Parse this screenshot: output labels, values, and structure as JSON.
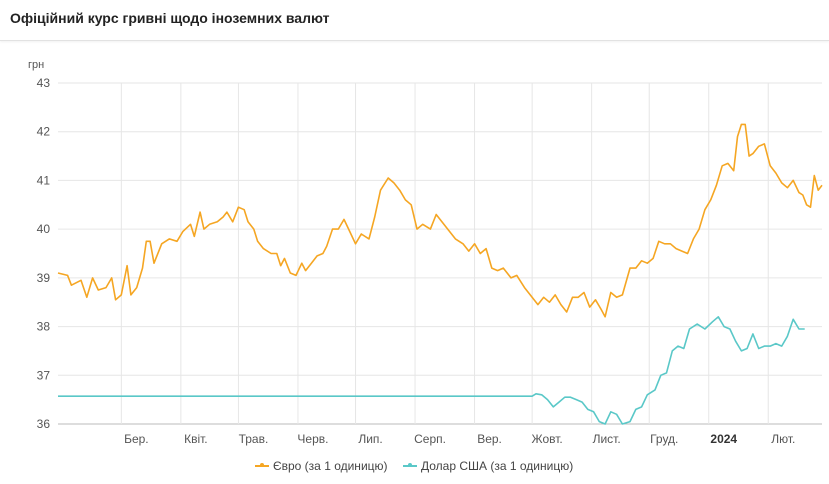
{
  "header": {
    "title": "Офіційний курс гривні щодо іноземних валют"
  },
  "chart_data": {
    "type": "line",
    "ylabel": "грн",
    "ylim": [
      36,
      43
    ],
    "yticks": [
      36,
      37,
      38,
      39,
      40,
      41,
      42,
      43
    ],
    "grid": true,
    "legend_position": "bottom",
    "x_range": [
      "2023-01-27",
      "2024-02-29"
    ],
    "month_ticks": [
      {
        "date": "2023-03-01",
        "label": "Бер.",
        "bold": false
      },
      {
        "date": "2023-04-01",
        "label": "Квіт.",
        "bold": false
      },
      {
        "date": "2023-05-01",
        "label": "Трав.",
        "bold": false
      },
      {
        "date": "2023-06-01",
        "label": "Черв.",
        "bold": false
      },
      {
        "date": "2023-07-01",
        "label": "Лип.",
        "bold": false
      },
      {
        "date": "2023-08-01",
        "label": "Серп.",
        "bold": false
      },
      {
        "date": "2023-09-01",
        "label": "Вер.",
        "bold": false
      },
      {
        "date": "2023-10-01",
        "label": "Жовт.",
        "bold": false
      },
      {
        "date": "2023-11-01",
        "label": "Лист.",
        "bold": false
      },
      {
        "date": "2023-12-01",
        "label": "Груд.",
        "bold": false
      },
      {
        "date": "2024-01-01",
        "label": "2024",
        "bold": true
      },
      {
        "date": "2024-02-01",
        "label": "Лют.",
        "bold": false
      }
    ],
    "series": [
      {
        "name": "Євро (за 1 одиницю)",
        "color": "#f5a623",
        "points": [
          [
            "2023-01-27",
            39.1
          ],
          [
            "2023-02-01",
            39.05
          ],
          [
            "2023-02-03",
            38.85
          ],
          [
            "2023-02-08",
            38.95
          ],
          [
            "2023-02-11",
            38.6
          ],
          [
            "2023-02-14",
            39.0
          ],
          [
            "2023-02-17",
            38.75
          ],
          [
            "2023-02-21",
            38.8
          ],
          [
            "2023-02-24",
            39.0
          ],
          [
            "2023-02-26",
            38.55
          ],
          [
            "2023-03-01",
            38.65
          ],
          [
            "2023-03-04",
            39.25
          ],
          [
            "2023-03-06",
            38.65
          ],
          [
            "2023-03-09",
            38.8
          ],
          [
            "2023-03-12",
            39.2
          ],
          [
            "2023-03-14",
            39.75
          ],
          [
            "2023-03-16",
            39.75
          ],
          [
            "2023-03-18",
            39.3
          ],
          [
            "2023-03-22",
            39.7
          ],
          [
            "2023-03-26",
            39.8
          ],
          [
            "2023-03-30",
            39.75
          ],
          [
            "2023-04-02",
            39.95
          ],
          [
            "2023-04-06",
            40.1
          ],
          [
            "2023-04-08",
            39.85
          ],
          [
            "2023-04-11",
            40.35
          ],
          [
            "2023-04-13",
            40.0
          ],
          [
            "2023-04-16",
            40.1
          ],
          [
            "2023-04-20",
            40.15
          ],
          [
            "2023-04-23",
            40.25
          ],
          [
            "2023-04-25",
            40.35
          ],
          [
            "2023-04-28",
            40.15
          ],
          [
            "2023-05-01",
            40.45
          ],
          [
            "2023-05-04",
            40.4
          ],
          [
            "2023-05-06",
            40.15
          ],
          [
            "2023-05-09",
            40.0
          ],
          [
            "2023-05-11",
            39.75
          ],
          [
            "2023-05-14",
            39.6
          ],
          [
            "2023-05-18",
            39.5
          ],
          [
            "2023-05-21",
            39.5
          ],
          [
            "2023-05-23",
            39.25
          ],
          [
            "2023-05-25",
            39.4
          ],
          [
            "2023-05-28",
            39.1
          ],
          [
            "2023-05-31",
            39.05
          ],
          [
            "2023-06-03",
            39.3
          ],
          [
            "2023-06-05",
            39.15
          ],
          [
            "2023-06-08",
            39.3
          ],
          [
            "2023-06-11",
            39.45
          ],
          [
            "2023-06-14",
            39.5
          ],
          [
            "2023-06-16",
            39.65
          ],
          [
            "2023-06-19",
            40.0
          ],
          [
            "2023-06-22",
            40.0
          ],
          [
            "2023-06-25",
            40.2
          ],
          [
            "2023-06-28",
            39.95
          ],
          [
            "2023-07-01",
            39.7
          ],
          [
            "2023-07-04",
            39.9
          ],
          [
            "2023-07-08",
            39.8
          ],
          [
            "2023-07-11",
            40.25
          ],
          [
            "2023-07-14",
            40.8
          ],
          [
            "2023-07-18",
            41.05
          ],
          [
            "2023-07-21",
            40.95
          ],
          [
            "2023-07-24",
            40.8
          ],
          [
            "2023-07-27",
            40.6
          ],
          [
            "2023-07-30",
            40.5
          ],
          [
            "2023-08-02",
            40.0
          ],
          [
            "2023-08-05",
            40.1
          ],
          [
            "2023-08-09",
            40.0
          ],
          [
            "2023-08-12",
            40.3
          ],
          [
            "2023-08-15",
            40.15
          ],
          [
            "2023-08-18",
            40.0
          ],
          [
            "2023-08-22",
            39.8
          ],
          [
            "2023-08-26",
            39.7
          ],
          [
            "2023-08-29",
            39.55
          ],
          [
            "2023-09-01",
            39.7
          ],
          [
            "2023-09-04",
            39.5
          ],
          [
            "2023-09-07",
            39.6
          ],
          [
            "2023-09-10",
            39.2
          ],
          [
            "2023-09-13",
            39.15
          ],
          [
            "2023-09-16",
            39.2
          ],
          [
            "2023-09-20",
            39.0
          ],
          [
            "2023-09-23",
            39.05
          ],
          [
            "2023-09-27",
            38.8
          ],
          [
            "2023-10-01",
            38.6
          ],
          [
            "2023-10-04",
            38.45
          ],
          [
            "2023-10-07",
            38.6
          ],
          [
            "2023-10-10",
            38.5
          ],
          [
            "2023-10-13",
            38.65
          ],
          [
            "2023-10-16",
            38.45
          ],
          [
            "2023-10-19",
            38.3
          ],
          [
            "2023-10-22",
            38.6
          ],
          [
            "2023-10-25",
            38.6
          ],
          [
            "2023-10-28",
            38.7
          ],
          [
            "2023-10-31",
            38.4
          ],
          [
            "2023-11-03",
            38.55
          ],
          [
            "2023-11-06",
            38.35
          ],
          [
            "2023-11-08",
            38.2
          ],
          [
            "2023-11-11",
            38.7
          ],
          [
            "2023-11-14",
            38.6
          ],
          [
            "2023-11-17",
            38.65
          ],
          [
            "2023-11-21",
            39.2
          ],
          [
            "2023-11-24",
            39.2
          ],
          [
            "2023-11-27",
            39.35
          ],
          [
            "2023-11-30",
            39.3
          ],
          [
            "2023-12-03",
            39.4
          ],
          [
            "2023-12-06",
            39.75
          ],
          [
            "2023-12-09",
            39.7
          ],
          [
            "2023-12-12",
            39.7
          ],
          [
            "2023-12-15",
            39.6
          ],
          [
            "2023-12-18",
            39.55
          ],
          [
            "2023-12-21",
            39.5
          ],
          [
            "2023-12-24",
            39.8
          ],
          [
            "2023-12-27",
            40.0
          ],
          [
            "2023-12-30",
            40.4
          ],
          [
            "2024-01-02",
            40.6
          ],
          [
            "2024-01-05",
            40.9
          ],
          [
            "2024-01-08",
            41.3
          ],
          [
            "2024-01-11",
            41.35
          ],
          [
            "2024-01-14",
            41.2
          ],
          [
            "2024-01-16",
            41.9
          ],
          [
            "2024-01-18",
            42.15
          ],
          [
            "2024-01-20",
            42.15
          ],
          [
            "2024-01-22",
            41.5
          ],
          [
            "2024-01-24",
            41.55
          ],
          [
            "2024-01-27",
            41.7
          ],
          [
            "2024-01-30",
            41.75
          ],
          [
            "2024-02-02",
            41.3
          ],
          [
            "2024-02-05",
            41.15
          ],
          [
            "2024-02-08",
            40.95
          ],
          [
            "2024-02-11",
            40.85
          ],
          [
            "2024-02-14",
            41.0
          ],
          [
            "2024-02-17",
            40.75
          ],
          [
            "2024-02-19",
            40.7
          ],
          [
            "2024-02-21",
            40.5
          ],
          [
            "2024-02-23",
            40.45
          ],
          [
            "2024-02-25",
            41.1
          ],
          [
            "2024-02-27",
            40.8
          ],
          [
            "2024-02-29",
            40.9
          ]
        ]
      },
      {
        "name": "Долар США (за 1 одиницю)",
        "color": "#5ac8c8",
        "points": [
          [
            "2023-01-27",
            36.57
          ],
          [
            "2023-10-01",
            36.57
          ],
          [
            "2023-10-03",
            36.62
          ],
          [
            "2023-10-06",
            36.6
          ],
          [
            "2023-10-09",
            36.5
          ],
          [
            "2023-10-12",
            36.35
          ],
          [
            "2023-10-15",
            36.45
          ],
          [
            "2023-10-18",
            36.55
          ],
          [
            "2023-10-21",
            36.55
          ],
          [
            "2023-10-24",
            36.5
          ],
          [
            "2023-10-27",
            36.45
          ],
          [
            "2023-10-30",
            36.3
          ],
          [
            "2023-11-02",
            36.25
          ],
          [
            "2023-11-05",
            36.05
          ],
          [
            "2023-11-08",
            36.0
          ],
          [
            "2023-11-11",
            36.25
          ],
          [
            "2023-11-14",
            36.2
          ],
          [
            "2023-11-17",
            36.0
          ],
          [
            "2023-11-21",
            36.05
          ],
          [
            "2023-11-24",
            36.3
          ],
          [
            "2023-11-27",
            36.35
          ],
          [
            "2023-11-30",
            36.6
          ],
          [
            "2023-12-04",
            36.7
          ],
          [
            "2023-12-07",
            37.0
          ],
          [
            "2023-12-10",
            37.05
          ],
          [
            "2023-12-13",
            37.5
          ],
          [
            "2023-12-16",
            37.6
          ],
          [
            "2023-12-19",
            37.55
          ],
          [
            "2023-12-22",
            37.95
          ],
          [
            "2023-12-26",
            38.05
          ],
          [
            "2023-12-30",
            37.95
          ],
          [
            "2024-01-03",
            38.1
          ],
          [
            "2024-01-06",
            38.2
          ],
          [
            "2024-01-09",
            38.0
          ],
          [
            "2024-01-12",
            37.95
          ],
          [
            "2024-01-15",
            37.7
          ],
          [
            "2024-01-18",
            37.5
          ],
          [
            "2024-01-21",
            37.55
          ],
          [
            "2024-01-24",
            37.85
          ],
          [
            "2024-01-27",
            37.55
          ],
          [
            "2024-01-30",
            37.6
          ],
          [
            "2024-02-02",
            37.6
          ],
          [
            "2024-02-05",
            37.65
          ],
          [
            "2024-02-08",
            37.6
          ],
          [
            "2024-02-11",
            37.8
          ],
          [
            "2024-02-14",
            38.15
          ],
          [
            "2024-02-17",
            37.95
          ],
          [
            "2024-02-20",
            37.95
          ]
        ]
      }
    ]
  }
}
